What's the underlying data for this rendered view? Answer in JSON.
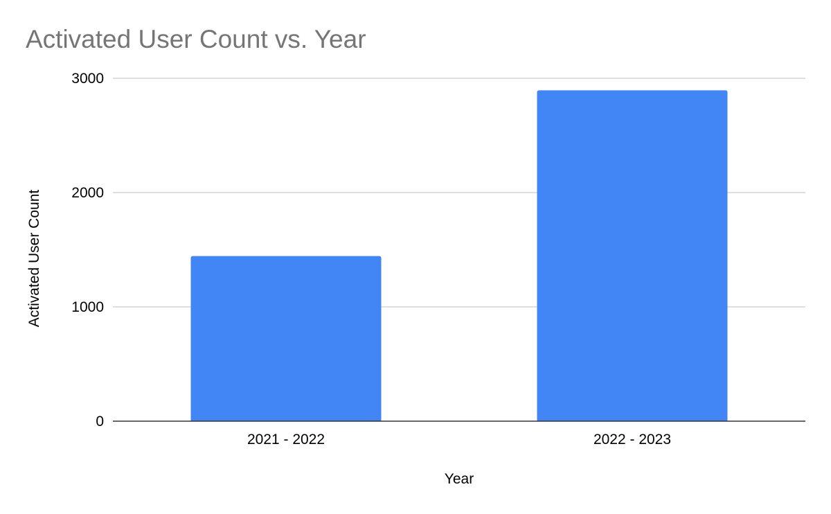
{
  "chart_data": {
    "type": "bar",
    "title": "Activated User Count vs. Year",
    "xlabel": "Year",
    "ylabel": "Activated User Count",
    "categories": [
      "2021 - 2022",
      "2022 - 2023"
    ],
    "values": [
      1445,
      2895
    ],
    "ylim": [
      0,
      3000
    ],
    "yticks": [
      0,
      1000,
      2000,
      3000
    ],
    "grid": true,
    "legend": "none",
    "bar_color": "#4285f4"
  }
}
